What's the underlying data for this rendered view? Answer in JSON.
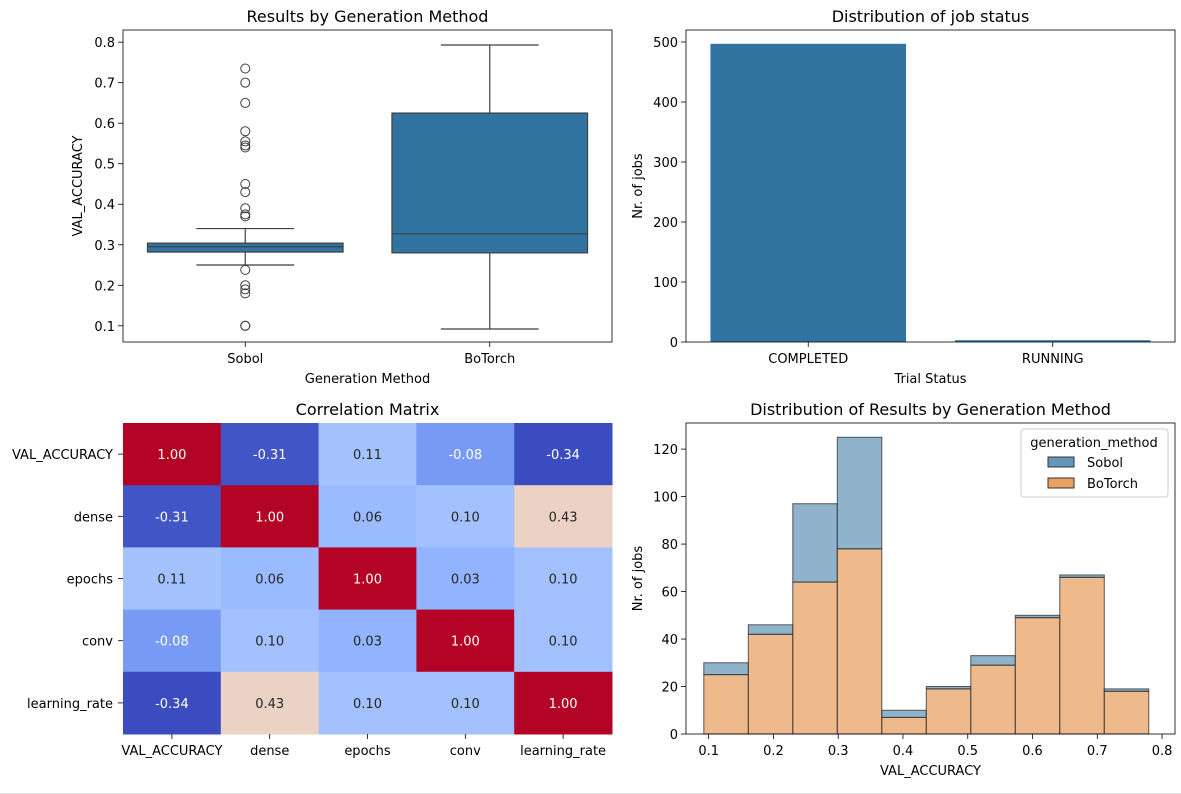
{
  "chart_data": [
    {
      "type": "box",
      "title": "Results by Generation Method",
      "xlabel": "Generation Method",
      "ylabel": "VAL_ACCURACY",
      "ylim": [
        0.06,
        0.83
      ],
      "yticks": [
        0.1,
        0.2,
        0.3,
        0.4,
        0.5,
        0.6,
        0.7,
        0.8
      ],
      "color": "#3274a1",
      "groups": [
        {
          "name": "Sobol",
          "whisker_low": 0.25,
          "q1": 0.282,
          "median": 0.295,
          "q3": 0.304,
          "whisker_high": 0.34,
          "outliers": [
            0.735,
            0.7,
            0.65,
            0.58,
            0.555,
            0.545,
            0.54,
            0.45,
            0.43,
            0.39,
            0.375,
            0.37,
            0.238,
            0.2,
            0.19,
            0.18,
            0.1,
            0.1
          ]
        },
        {
          "name": "BoTorch",
          "whisker_low": 0.092,
          "q1": 0.28,
          "median": 0.327,
          "q3": 0.625,
          "whisker_high": 0.793,
          "outliers": []
        }
      ]
    },
    {
      "type": "bar",
      "title": "Distribution of job status",
      "xlabel": "Trial Status",
      "ylabel": "Nr. of jobs",
      "ylim": [
        0,
        520
      ],
      "yticks": [
        0,
        100,
        200,
        300,
        400,
        500
      ],
      "color": "#3274a1",
      "categories": [
        "COMPLETED",
        "RUNNING"
      ],
      "values": [
        497,
        3
      ]
    },
    {
      "type": "heatmap",
      "title": "Correlation Matrix",
      "labels": [
        "VAL_ACCURACY",
        "dense",
        "epochs",
        "conv",
        "learning_rate"
      ],
      "values": [
        [
          1.0,
          -0.31,
          0.11,
          -0.08,
          -0.34
        ],
        [
          -0.31,
          1.0,
          0.06,
          0.1,
          0.43
        ],
        [
          0.11,
          0.06,
          1.0,
          0.03,
          0.1
        ],
        [
          -0.08,
          0.1,
          0.03,
          1.0,
          0.1
        ],
        [
          -0.34,
          0.43,
          0.1,
          0.1,
          1.0
        ]
      ],
      "colormap": "coolwarm",
      "vmin": -0.34,
      "vmax": 1.0,
      "colors": {
        "low": "#3b4cc0",
        "mid": "#dddddd",
        "high": "#b40426"
      }
    },
    {
      "type": "histogram",
      "stacked": true,
      "title": "Distribution of Results by Generation Method",
      "xlabel": "VAL_ACCURACY",
      "ylabel": "Nr. of jobs",
      "xlim": [
        0.065,
        0.82
      ],
      "ylim": [
        0,
        131
      ],
      "xticks": [
        0.1,
        0.2,
        0.3,
        0.4,
        0.5,
        0.6,
        0.7,
        0.8
      ],
      "yticks": [
        0,
        20,
        40,
        60,
        80,
        100,
        120
      ],
      "bin_edges": [
        0.0925,
        0.1612,
        0.2299,
        0.2986,
        0.3673,
        0.436,
        0.5047,
        0.5734,
        0.6421,
        0.7108,
        0.7795
      ],
      "legend_title": "generation_method",
      "legend_position": "upper right",
      "series": [
        {
          "name": "Sobol",
          "color": "#3274a1",
          "values": [
            5,
            4,
            33,
            47,
            3,
            1,
            4,
            1,
            1,
            1
          ]
        },
        {
          "name": "BoTorch",
          "color": "#e1812c",
          "values": [
            25,
            42,
            64,
            78,
            7,
            19,
            29,
            49,
            66,
            18
          ]
        }
      ]
    }
  ]
}
